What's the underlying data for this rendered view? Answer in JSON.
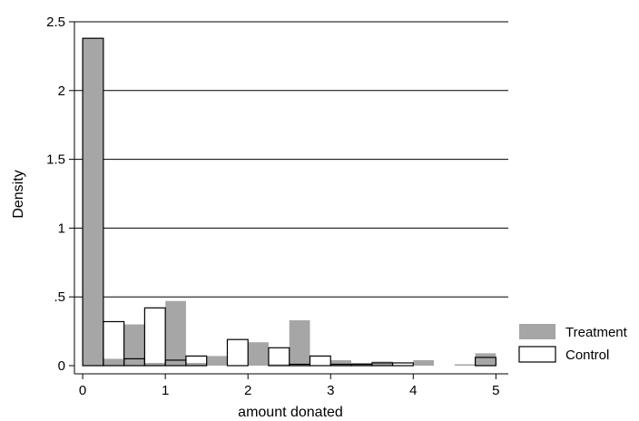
{
  "chart_data": {
    "type": "bar",
    "xlabel": "amount donated",
    "ylabel": "Density",
    "xlim": [
      -0.1,
      5.15
    ],
    "ylim": [
      0,
      2.5
    ],
    "grid": "horizontal",
    "legend_position": "bottom-right",
    "xticks": [
      {
        "value": 0,
        "label": "0"
      },
      {
        "value": 1,
        "label": "1"
      },
      {
        "value": 2,
        "label": "2"
      },
      {
        "value": 3,
        "label": "3"
      },
      {
        "value": 4,
        "label": "4"
      },
      {
        "value": 5,
        "label": "5"
      }
    ],
    "yticks": [
      {
        "value": 0,
        "label": "0"
      },
      {
        "value": 0.5,
        "label": ".5"
      },
      {
        "value": 1,
        "label": "1"
      },
      {
        "value": 1.5,
        "label": "1.5"
      },
      {
        "value": 2,
        "label": "2"
      },
      {
        "value": 2.5,
        "label": "2.5"
      }
    ],
    "series": [
      {
        "name": "Treatment",
        "fill": "#a6a6a6",
        "stroke": "none",
        "bins": [
          {
            "x0": 0.0,
            "x1": 0.25,
            "density": 2.38
          },
          {
            "x0": 0.25,
            "x1": 0.5,
            "density": 0.05
          },
          {
            "x0": 0.5,
            "x1": 0.75,
            "density": 0.3
          },
          {
            "x0": 0.75,
            "x1": 1.0,
            "density": 0.02
          },
          {
            "x0": 1.0,
            "x1": 1.25,
            "density": 0.47
          },
          {
            "x0": 1.25,
            "x1": 1.5,
            "density": 0.02
          },
          {
            "x0": 1.5,
            "x1": 1.75,
            "density": 0.07
          },
          {
            "x0": 2.0,
            "x1": 2.25,
            "density": 0.17
          },
          {
            "x0": 2.25,
            "x1": 2.5,
            "density": 0.01
          },
          {
            "x0": 2.5,
            "x1": 2.75,
            "density": 0.33
          },
          {
            "x0": 3.0,
            "x1": 3.25,
            "density": 0.04
          },
          {
            "x0": 3.25,
            "x1": 3.5,
            "density": 0.02
          },
          {
            "x0": 3.5,
            "x1": 3.75,
            "density": 0.03
          },
          {
            "x0": 4.0,
            "x1": 4.25,
            "density": 0.04
          },
          {
            "x0": 4.5,
            "x1": 4.75,
            "density": 0.01
          },
          {
            "x0": 4.75,
            "x1": 5.0,
            "density": 0.09
          }
        ]
      },
      {
        "name": "Control",
        "fill": "none",
        "stroke": "#000000",
        "bins": [
          {
            "x0": 0.0,
            "x1": 0.25,
            "density": 2.38
          },
          {
            "x0": 0.25,
            "x1": 0.5,
            "density": 0.32
          },
          {
            "x0": 0.5,
            "x1": 0.75,
            "density": 0.05
          },
          {
            "x0": 0.75,
            "x1": 1.0,
            "density": 0.42
          },
          {
            "x0": 1.0,
            "x1": 1.25,
            "density": 0.04
          },
          {
            "x0": 1.25,
            "x1": 1.5,
            "density": 0.07
          },
          {
            "x0": 1.75,
            "x1": 2.0,
            "density": 0.19
          },
          {
            "x0": 2.25,
            "x1": 2.5,
            "density": 0.13
          },
          {
            "x0": 2.5,
            "x1": 2.75,
            "density": 0.01
          },
          {
            "x0": 2.75,
            "x1": 3.0,
            "density": 0.07
          },
          {
            "x0": 3.0,
            "x1": 3.25,
            "density": 0.01
          },
          {
            "x0": 3.25,
            "x1": 3.5,
            "density": 0.01
          },
          {
            "x0": 3.5,
            "x1": 3.75,
            "density": 0.02
          },
          {
            "x0": 3.75,
            "x1": 4.0,
            "density": 0.02
          },
          {
            "x0": 4.75,
            "x1": 5.0,
            "density": 0.06
          }
        ]
      }
    ]
  }
}
